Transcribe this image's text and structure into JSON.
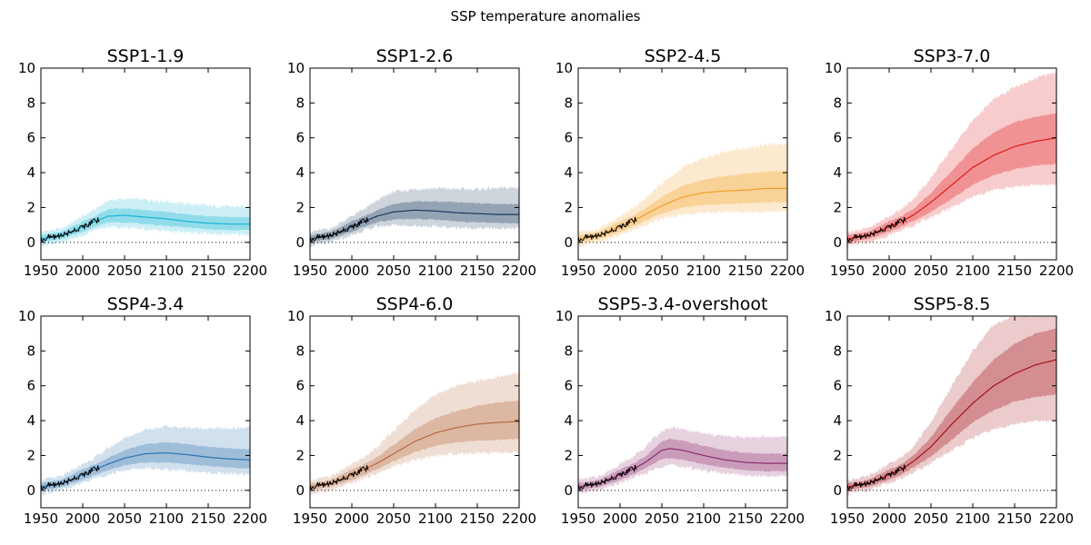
{
  "figure_title": "SSP temperature anomalies",
  "colors": {
    "observed": "#000000",
    "zero_line": "#000000",
    "axes": "#000000"
  },
  "chart_data": [
    {
      "type": "area",
      "title": "SSP1-1.9",
      "color": "#17b4d2",
      "xlim": [
        1950,
        2200
      ],
      "ylim": [
        -1,
        10
      ],
      "xticks": [
        1950,
        2000,
        2050,
        2100,
        2150,
        2200
      ],
      "yticks": [
        0,
        2,
        4,
        6,
        8,
        10
      ],
      "x": [
        1950,
        1975,
        2000,
        2015,
        2030,
        2050,
        2075,
        2100,
        2125,
        2150,
        2175,
        2200
      ],
      "median": [
        0.2,
        0.4,
        0.9,
        1.2,
        1.5,
        1.55,
        1.45,
        1.35,
        1.2,
        1.1,
        1.05,
        1.05
      ],
      "p17": [
        0.0,
        0.2,
        0.6,
        0.9,
        1.15,
        1.15,
        1.05,
        0.95,
        0.85,
        0.75,
        0.7,
        0.7
      ],
      "p83": [
        0.4,
        0.6,
        1.2,
        1.5,
        1.9,
        1.95,
        1.85,
        1.75,
        1.6,
        1.5,
        1.45,
        1.45
      ],
      "p5": [
        -0.2,
        0.0,
        0.4,
        0.7,
        0.9,
        0.85,
        0.75,
        0.65,
        0.55,
        0.5,
        0.45,
        0.45
      ],
      "p95": [
        0.6,
        0.8,
        1.5,
        1.9,
        2.4,
        2.5,
        2.45,
        2.35,
        2.2,
        2.1,
        2.05,
        2.05
      ]
    },
    {
      "type": "area",
      "title": "SSP1-2.6",
      "color": "#1b3a5e",
      "xlim": [
        1950,
        2200
      ],
      "ylim": [
        -1,
        10
      ],
      "xticks": [
        1950,
        2000,
        2050,
        2100,
        2150,
        2200
      ],
      "yticks": [
        0,
        2,
        4,
        6,
        8,
        10
      ],
      "x": [
        1950,
        1975,
        2000,
        2015,
        2030,
        2050,
        2075,
        2100,
        2125,
        2150,
        2175,
        2200
      ],
      "median": [
        0.2,
        0.4,
        0.9,
        1.2,
        1.5,
        1.75,
        1.85,
        1.8,
        1.7,
        1.65,
        1.6,
        1.6
      ],
      "p17": [
        0.0,
        0.2,
        0.6,
        0.9,
        1.15,
        1.3,
        1.35,
        1.3,
        1.2,
        1.15,
        1.1,
        1.1
      ],
      "p83": [
        0.4,
        0.6,
        1.2,
        1.5,
        1.85,
        2.2,
        2.35,
        2.35,
        2.3,
        2.25,
        2.2,
        2.2
      ],
      "p5": [
        -0.2,
        0.0,
        0.4,
        0.7,
        0.9,
        1.0,
        0.95,
        0.9,
        0.85,
        0.8,
        0.8,
        0.8
      ],
      "p95": [
        0.6,
        0.8,
        1.5,
        1.9,
        2.4,
        2.9,
        3.05,
        3.1,
        3.05,
        3.05,
        3.1,
        3.15
      ]
    },
    {
      "type": "area",
      "title": "SSP2-4.5",
      "color": "#f29f25",
      "xlim": [
        1950,
        2200
      ],
      "ylim": [
        -1,
        10
      ],
      "xticks": [
        1950,
        2000,
        2050,
        2100,
        2150,
        2200
      ],
      "yticks": [
        0,
        2,
        4,
        6,
        8,
        10
      ],
      "x": [
        1950,
        1975,
        2000,
        2015,
        2030,
        2050,
        2075,
        2100,
        2125,
        2150,
        2175,
        2200
      ],
      "median": [
        0.2,
        0.4,
        0.9,
        1.2,
        1.6,
        2.1,
        2.6,
        2.85,
        2.95,
        3.0,
        3.1,
        3.1
      ],
      "p17": [
        0.0,
        0.2,
        0.6,
        0.9,
        1.25,
        1.65,
        2.0,
        2.15,
        2.2,
        2.25,
        2.3,
        2.3
      ],
      "p83": [
        0.4,
        0.6,
        1.2,
        1.5,
        1.95,
        2.6,
        3.25,
        3.6,
        3.8,
        3.95,
        4.05,
        4.1
      ],
      "p5": [
        -0.2,
        0.0,
        0.4,
        0.7,
        1.0,
        1.35,
        1.6,
        1.7,
        1.75,
        1.75,
        1.75,
        1.75
      ],
      "p95": [
        0.6,
        0.8,
        1.5,
        1.9,
        2.5,
        3.4,
        4.3,
        4.8,
        5.2,
        5.4,
        5.6,
        5.7
      ]
    },
    {
      "type": "area",
      "title": "SSP3-7.0",
      "color": "#e0181a",
      "xlim": [
        1950,
        2200
      ],
      "ylim": [
        -1,
        10
      ],
      "xticks": [
        1950,
        2000,
        2050,
        2100,
        2150,
        2200
      ],
      "yticks": [
        0,
        2,
        4,
        6,
        8,
        10
      ],
      "x": [
        1950,
        1975,
        2000,
        2015,
        2030,
        2050,
        2075,
        2100,
        2125,
        2150,
        2175,
        2200
      ],
      "median": [
        0.2,
        0.4,
        0.9,
        1.2,
        1.6,
        2.3,
        3.3,
        4.3,
        5.0,
        5.5,
        5.8,
        6.0
      ],
      "p17": [
        0.0,
        0.2,
        0.6,
        0.9,
        1.25,
        1.75,
        2.5,
        3.3,
        3.85,
        4.2,
        4.4,
        4.5
      ],
      "p83": [
        0.4,
        0.6,
        1.2,
        1.5,
        1.95,
        2.85,
        4.1,
        5.4,
        6.3,
        6.9,
        7.2,
        7.4
      ],
      "p5": [
        -0.2,
        0.0,
        0.4,
        0.7,
        1.0,
        1.45,
        2.0,
        2.6,
        3.0,
        3.2,
        3.3,
        3.3
      ],
      "p95": [
        0.6,
        0.8,
        1.5,
        1.9,
        2.55,
        3.7,
        5.4,
        7.0,
        8.2,
        8.9,
        9.4,
        9.8
      ]
    },
    {
      "type": "area",
      "title": "SSP4-3.4",
      "color": "#2e72ad",
      "xlim": [
        1950,
        2200
      ],
      "ylim": [
        -1,
        10
      ],
      "xticks": [
        1950,
        2000,
        2050,
        2100,
        2150,
        2200
      ],
      "yticks": [
        0,
        2,
        4,
        6,
        8,
        10
      ],
      "x": [
        1950,
        1975,
        2000,
        2015,
        2030,
        2050,
        2075,
        2100,
        2125,
        2150,
        2175,
        2200
      ],
      "median": [
        0.2,
        0.4,
        0.9,
        1.2,
        1.5,
        1.85,
        2.1,
        2.15,
        2.05,
        1.9,
        1.8,
        1.75
      ],
      "p17": [
        0.0,
        0.2,
        0.6,
        0.9,
        1.15,
        1.45,
        1.6,
        1.6,
        1.5,
        1.4,
        1.3,
        1.25
      ],
      "p83": [
        0.4,
        0.6,
        1.2,
        1.5,
        1.85,
        2.3,
        2.65,
        2.75,
        2.65,
        2.5,
        2.4,
        2.35
      ],
      "p5": [
        -0.2,
        0.0,
        0.4,
        0.7,
        0.9,
        1.15,
        1.25,
        1.2,
        1.1,
        1.0,
        0.95,
        0.9
      ],
      "p95": [
        0.6,
        0.8,
        1.5,
        1.9,
        2.4,
        3.0,
        3.5,
        3.65,
        3.6,
        3.55,
        3.55,
        3.6
      ]
    },
    {
      "type": "area",
      "title": "SSP4-6.0",
      "color": "#b46a3c",
      "xlim": [
        1950,
        2200
      ],
      "ylim": [
        -1,
        10
      ],
      "xticks": [
        1950,
        2000,
        2050,
        2100,
        2150,
        2200
      ],
      "yticks": [
        0,
        2,
        4,
        6,
        8,
        10
      ],
      "x": [
        1950,
        1975,
        2000,
        2015,
        2030,
        2050,
        2075,
        2100,
        2125,
        2150,
        2175,
        2200
      ],
      "median": [
        0.2,
        0.4,
        0.9,
        1.2,
        1.55,
        2.1,
        2.8,
        3.3,
        3.6,
        3.8,
        3.9,
        3.95
      ],
      "p17": [
        0.0,
        0.2,
        0.6,
        0.9,
        1.2,
        1.65,
        2.2,
        2.55,
        2.75,
        2.85,
        2.9,
        2.95
      ],
      "p83": [
        0.4,
        0.6,
        1.2,
        1.5,
        1.9,
        2.6,
        3.5,
        4.15,
        4.55,
        4.85,
        5.05,
        5.15
      ],
      "p5": [
        -0.2,
        0.0,
        0.4,
        0.7,
        0.95,
        1.35,
        1.75,
        2.0,
        2.1,
        2.15,
        2.15,
        2.15
      ],
      "p95": [
        0.6,
        0.8,
        1.5,
        1.9,
        2.5,
        3.4,
        4.6,
        5.5,
        6.0,
        6.3,
        6.5,
        6.7
      ]
    },
    {
      "type": "area",
      "title": "SSP5-3.4-overshoot",
      "color": "#8e2d6c",
      "xlim": [
        1950,
        2200
      ],
      "ylim": [
        -1,
        10
      ],
      "xticks": [
        1950,
        2000,
        2050,
        2100,
        2150,
        2200
      ],
      "yticks": [
        0,
        2,
        4,
        6,
        8,
        10
      ],
      "x": [
        1950,
        1975,
        2000,
        2015,
        2030,
        2050,
        2060,
        2075,
        2100,
        2125,
        2150,
        2175,
        2200
      ],
      "median": [
        0.2,
        0.4,
        0.9,
        1.2,
        1.6,
        2.3,
        2.4,
        2.3,
        2.0,
        1.75,
        1.6,
        1.55,
        1.55
      ],
      "p17": [
        0.0,
        0.2,
        0.6,
        0.9,
        1.25,
        1.8,
        1.85,
        1.75,
        1.5,
        1.3,
        1.15,
        1.1,
        1.1
      ],
      "p83": [
        0.4,
        0.6,
        1.2,
        1.5,
        1.95,
        2.8,
        2.95,
        2.85,
        2.55,
        2.3,
        2.15,
        2.1,
        2.1
      ],
      "p5": [
        -0.2,
        0.0,
        0.4,
        0.7,
        0.95,
        1.4,
        1.45,
        1.35,
        1.15,
        0.95,
        0.85,
        0.8,
        0.8
      ],
      "p95": [
        0.6,
        0.8,
        1.5,
        1.9,
        2.5,
        3.4,
        3.6,
        3.5,
        3.25,
        3.1,
        3.05,
        3.05,
        3.1
      ]
    },
    {
      "type": "area",
      "title": "SSP5-8.5",
      "color": "#a51116",
      "xlim": [
        1950,
        2200
      ],
      "ylim": [
        -1,
        10
      ],
      "xticks": [
        1950,
        2000,
        2050,
        2100,
        2150,
        2200
      ],
      "yticks": [
        0,
        2,
        4,
        6,
        8,
        10
      ],
      "x": [
        1950,
        1975,
        2000,
        2015,
        2030,
        2050,
        2075,
        2100,
        2125,
        2150,
        2175,
        2200
      ],
      "median": [
        0.2,
        0.4,
        0.9,
        1.2,
        1.7,
        2.5,
        3.8,
        5.0,
        6.0,
        6.7,
        7.2,
        7.5
      ],
      "p17": [
        0.0,
        0.2,
        0.6,
        0.9,
        1.35,
        1.95,
        2.9,
        3.9,
        4.6,
        5.1,
        5.35,
        5.5
      ],
      "p83": [
        0.4,
        0.6,
        1.2,
        1.5,
        2.05,
        3.05,
        4.7,
        6.2,
        7.5,
        8.4,
        9.0,
        9.3
      ],
      "p5": [
        -0.2,
        0.0,
        0.4,
        0.7,
        1.05,
        1.55,
        2.3,
        3.0,
        3.5,
        3.8,
        3.95,
        4.0
      ],
      "p95": [
        0.6,
        0.8,
        1.5,
        1.9,
        2.6,
        3.9,
        6.0,
        8.0,
        9.5,
        10.0,
        10.0,
        10.0
      ]
    }
  ]
}
